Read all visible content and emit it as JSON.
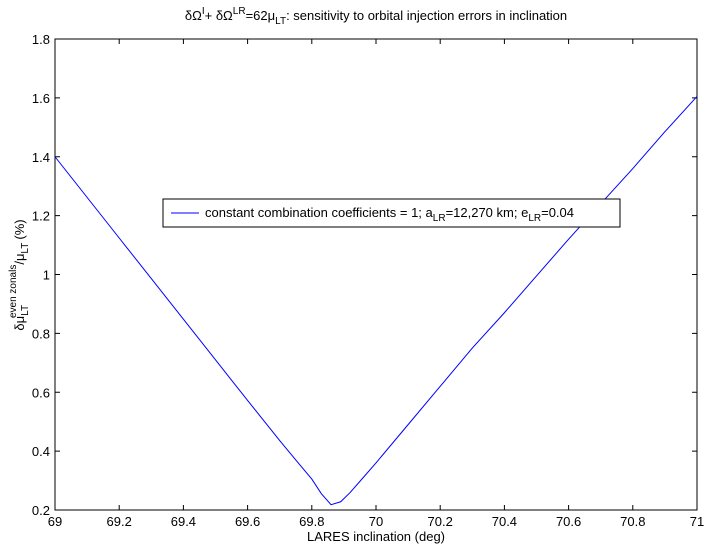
{
  "chart_data": {
    "type": "line",
    "title": [
      "δΩ",
      "I",
      "+ δΩ",
      "LR",
      "=62μ",
      "LT",
      ": sensitivity to orbital injection errors in inclination"
    ],
    "x_label": "LARES inclination (deg)",
    "y_label": [
      "δμ",
      "LT",
      "even zonals",
      "/μ",
      "LT",
      "(%)"
    ],
    "x": [
      69.0,
      69.1,
      69.2,
      69.3,
      69.4,
      69.5,
      69.6,
      69.7,
      69.75,
      69.8,
      69.83,
      69.86,
      69.89,
      69.92,
      69.96,
      70.0,
      70.1,
      70.2,
      70.3,
      70.4,
      70.5,
      70.6,
      70.7,
      70.8,
      70.9,
      71.0
    ],
    "series": [
      {
        "name": [
          "constant combination coefficients = 1; a",
          "LR",
          "=12,270 km; e",
          "LR",
          "=0.04"
        ],
        "color": "#0000ff",
        "values": [
          1.4,
          1.262,
          1.124,
          0.986,
          0.848,
          0.71,
          0.572,
          0.436,
          0.37,
          0.305,
          0.255,
          0.218,
          0.228,
          0.26,
          0.31,
          0.36,
          0.49,
          0.62,
          0.75,
          0.87,
          0.995,
          1.12,
          1.24,
          1.36,
          1.485,
          1.605
        ]
      }
    ],
    "xlim": [
      69,
      71
    ],
    "xticks": [
      69,
      69.2,
      69.4,
      69.6,
      69.8,
      70,
      70.2,
      70.4,
      70.6,
      70.8,
      71
    ],
    "ylim": [
      0.2,
      1.8
    ],
    "yticks": [
      0.2,
      0.4,
      0.6,
      0.8,
      1,
      1.2,
      1.4,
      1.6,
      1.8
    ],
    "grid": false,
    "legend": "center"
  }
}
